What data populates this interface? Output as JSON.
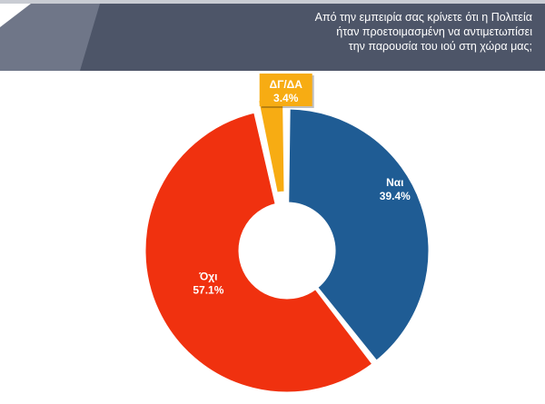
{
  "header": {
    "question_lines": [
      "Από την εμπειρία σας κρίνετε ότι η Πολιτεία",
      "ήταν προετοιμασμένη να αντιμετωπίσει",
      "την παρουσία του ιού στη χώρα μας;"
    ],
    "band_color": "#4d5568",
    "accent_color": "#6f7688"
  },
  "chart_data": {
    "type": "pie",
    "style": "donut",
    "title": "Από την εμπειρία σας κρίνετε ότι η Πολιτεία ήταν προετοιμασμένη να αντιμετωπίσει την παρουσία του ιού στη χώρα μας;",
    "slices": [
      {
        "label": "Ναι",
        "value": 39.4,
        "value_label": "39.4%",
        "color": "#1f5c94",
        "exploded": false
      },
      {
        "label": "Όχι",
        "value": 57.1,
        "value_label": "57.1%",
        "color": "#f0310f",
        "exploded": false
      },
      {
        "label": "ΔΓ/ΔΑ",
        "value": 3.4,
        "value_label": "3.4%",
        "color": "#f7ac13",
        "exploded": true
      }
    ],
    "start_angle_deg": 0,
    "direction": "clockwise"
  }
}
